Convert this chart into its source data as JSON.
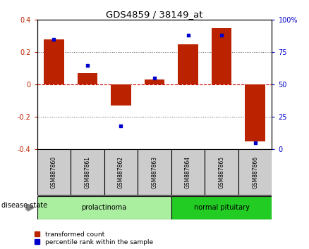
{
  "title": "GDS4859 / 38149_at",
  "samples": [
    "GSM887860",
    "GSM887861",
    "GSM887862",
    "GSM887863",
    "GSM887864",
    "GSM887865",
    "GSM887866"
  ],
  "transformed_count": [
    0.28,
    0.07,
    -0.13,
    0.03,
    0.25,
    0.35,
    -0.35
  ],
  "percentile_rank": [
    85,
    65,
    18,
    55,
    88,
    88,
    5
  ],
  "ylim_left": [
    -0.4,
    0.4
  ],
  "ylim_right": [
    0,
    100
  ],
  "yticks_left": [
    -0.4,
    -0.2,
    0.0,
    0.2,
    0.4
  ],
  "yticks_right": [
    0,
    25,
    50,
    75,
    100
  ],
  "ytick_labels_right": [
    "0",
    "25",
    "50",
    "75",
    "100%"
  ],
  "ytick_labels_left": [
    "-0.4",
    "-0.2",
    "0",
    "0.2",
    "0.4"
  ],
  "bar_color": "#bb2200",
  "dot_color": "#0000cc",
  "groups": [
    {
      "label": "prolactinoma",
      "indices": [
        0,
        1,
        2,
        3
      ],
      "color": "#aaeea0"
    },
    {
      "label": "normal pituitary",
      "indices": [
        4,
        5,
        6
      ],
      "color": "#22cc22"
    }
  ],
  "group_label": "disease state",
  "legend_bar": "transformed count",
  "legend_dot": "percentile rank within the sample",
  "zero_line_color": "#cc0000",
  "dot_line_color": "#555555",
  "sample_box_color": "#cccccc",
  "bar_width": 0.6
}
